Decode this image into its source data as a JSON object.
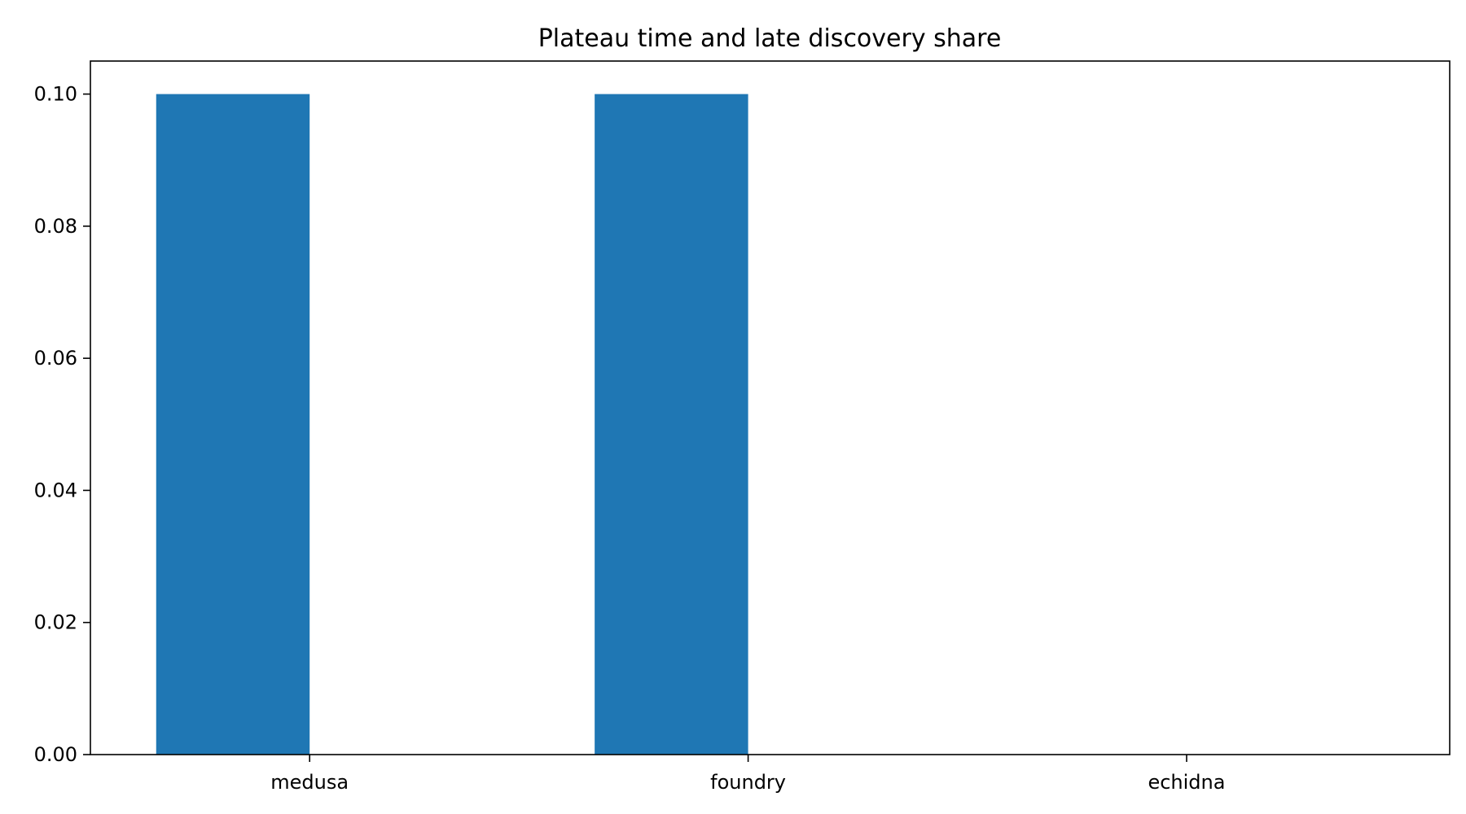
{
  "chart_data": {
    "type": "bar",
    "title": "Plateau time and late discovery share",
    "xlabel": "",
    "ylabel": "",
    "categories": [
      "medusa",
      "foundry",
      "echidna"
    ],
    "series": [
      {
        "values": [
          0.1,
          0.1,
          0.0
        ],
        "color": "#1f77b4"
      },
      {
        "values": [
          0.0,
          0.0,
          0.0
        ],
        "color": "#ff7f0e"
      }
    ],
    "ylim": [
      0,
      0.105
    ],
    "yticks": [
      0.0,
      0.02,
      0.04,
      0.06,
      0.08,
      0.1
    ],
    "ytick_labels": [
      "0.00",
      "0.02",
      "0.04",
      "0.06",
      "0.08",
      "0.10"
    ],
    "grid": false,
    "legend": "none"
  }
}
